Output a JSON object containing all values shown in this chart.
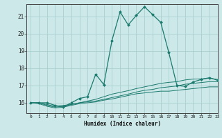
{
  "xlabel": "Humidex (Indice chaleur)",
  "bg_color": "#cce8e8",
  "grid_color": "#aacfcf",
  "line_color": "#1a7a6e",
  "xlim": [
    -0.5,
    23
  ],
  "ylim": [
    15.4,
    21.7
  ],
  "yticks": [
    16,
    17,
    18,
    19,
    20,
    21
  ],
  "xticks": [
    0,
    1,
    2,
    3,
    4,
    5,
    6,
    7,
    8,
    9,
    10,
    11,
    12,
    13,
    14,
    15,
    16,
    17,
    18,
    19,
    20,
    21,
    22,
    23
  ],
  "series": [
    [
      16.0,
      16.0,
      16.0,
      15.85,
      15.75,
      16.0,
      16.25,
      16.35,
      17.65,
      17.05,
      19.6,
      21.25,
      20.5,
      21.05,
      21.55,
      21.1,
      20.65,
      18.9,
      17.0,
      16.95,
      17.2,
      17.35,
      17.45,
      17.3
    ],
    [
      16.0,
      16.0,
      15.9,
      15.8,
      15.85,
      15.9,
      16.0,
      16.1,
      16.2,
      16.35,
      16.5,
      16.6,
      16.7,
      16.82,
      16.92,
      17.02,
      17.12,
      17.18,
      17.22,
      17.32,
      17.37,
      17.38,
      17.42,
      17.35
    ],
    [
      16.0,
      16.0,
      15.85,
      15.75,
      15.8,
      15.9,
      16.0,
      16.05,
      16.1,
      16.2,
      16.3,
      16.4,
      16.5,
      16.62,
      16.72,
      16.77,
      16.87,
      16.92,
      16.97,
      17.07,
      17.12,
      17.17,
      17.22,
      17.22
    ],
    [
      16.0,
      15.95,
      15.8,
      15.7,
      15.75,
      15.85,
      15.95,
      16.0,
      16.05,
      16.15,
      16.22,
      16.32,
      16.42,
      16.52,
      16.57,
      16.62,
      16.67,
      16.67,
      16.72,
      16.77,
      16.82,
      16.87,
      16.92,
      16.92
    ]
  ]
}
